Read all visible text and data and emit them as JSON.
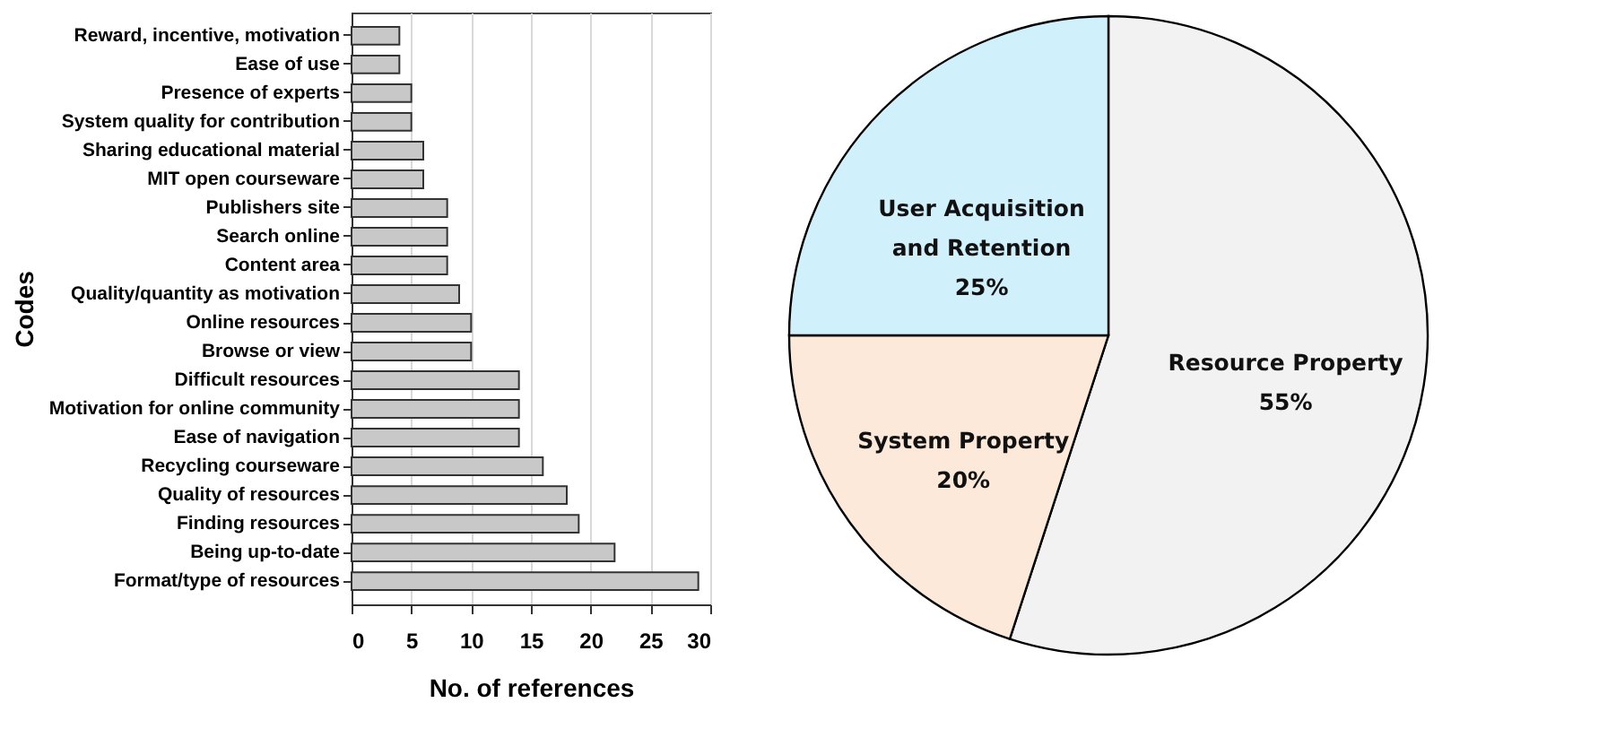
{
  "chart_data": [
    {
      "type": "bar",
      "orientation": "horizontal",
      "xlabel": "No. of references",
      "ylabel": "Codes",
      "categories": [
        "Reward, incentive, motivation",
        "Ease of use",
        "Presence of experts",
        "System quality for contribution",
        "Sharing educational material",
        "MIT open courseware",
        "Publishers site",
        "Search online",
        "Content area",
        "Quality/quantity as motivation",
        "Online resources",
        "Browse or view",
        "Difficult resources",
        "Motivation for online community",
        "Ease of navigation",
        "Recycling courseware",
        "Quality of resources",
        "Finding resources",
        "Being up-to-date",
        "Format/type of resources"
      ],
      "values": [
        4,
        4,
        5,
        5,
        6,
        6,
        8,
        8,
        8,
        9,
        10,
        10,
        14,
        14,
        14,
        16,
        18,
        19,
        22,
        29
      ],
      "color": "#c8c8c8",
      "xlim": [
        0,
        30
      ],
      "xticks": [
        0,
        5,
        10,
        15,
        20,
        25,
        30
      ],
      "grid": "x"
    },
    {
      "type": "pie",
      "categories": [
        "Resource Property",
        "System Property",
        "User Acquisition and Retention"
      ],
      "values": [
        55,
        20,
        25
      ],
      "value_labels": [
        "55%",
        "20%",
        "25%"
      ],
      "colors": [
        "#f2f2f2",
        "#fde9d9",
        "#d0f0fc"
      ]
    }
  ]
}
